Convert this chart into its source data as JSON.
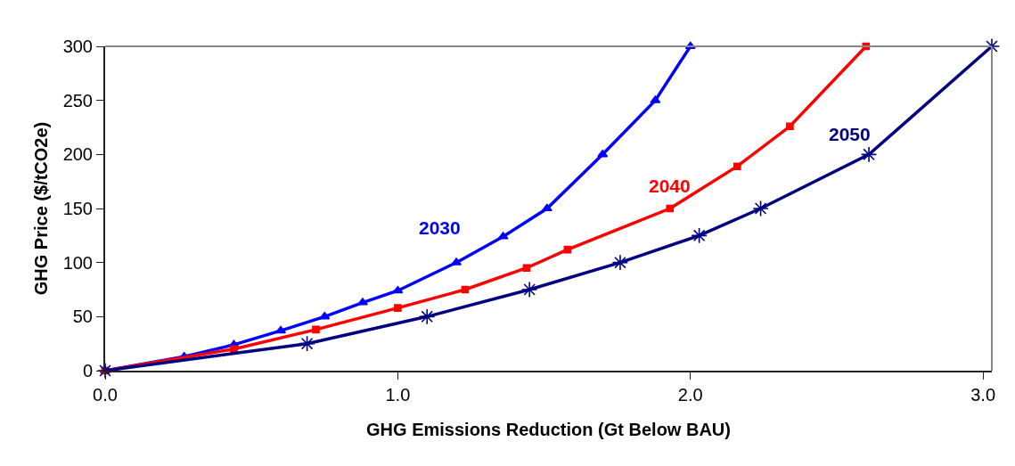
{
  "chart_data": {
    "type": "line",
    "xlabel": "GHG Emissions Reduction (Gt Below BAU)",
    "ylabel": "GHG Price ($/tCO2e)",
    "xlim": [
      0,
      3.03
    ],
    "xticks": [
      {
        "value": 0,
        "label": "0.0"
      },
      {
        "value": 1,
        "label": "1.0"
      },
      {
        "value": 2,
        "label": "2.0"
      },
      {
        "value": 3,
        "label": "3.0"
      }
    ],
    "ylim": [
      0,
      300
    ],
    "yticks": [
      0,
      50,
      100,
      150,
      200,
      250,
      300
    ],
    "legend": false,
    "line_style": "solid",
    "series": [
      {
        "name": "2030",
        "color": "#0000ff",
        "marker": "triangle",
        "x": [
          0,
          0.27,
          0.44,
          0.6,
          0.75,
          0.88,
          1.0,
          1.2,
          1.36,
          1.51,
          1.7,
          1.88,
          2.0
        ],
        "values": [
          0,
          13,
          24,
          37,
          50,
          63,
          74,
          100,
          124,
          150,
          200,
          250,
          300
        ]
      },
      {
        "name": "2040",
        "color": "#ff0000",
        "marker": "square",
        "x": [
          0,
          0.44,
          0.72,
          1.0,
          1.23,
          1.44,
          1.58,
          1.93,
          2.16,
          2.34,
          2.6
        ],
        "values": [
          0,
          20,
          38,
          58,
          75,
          95,
          112,
          150,
          189,
          226,
          300
        ]
      },
      {
        "name": "2050",
        "color": "#000080",
        "marker": "cross",
        "x": [
          0,
          0.69,
          1.1,
          1.45,
          1.76,
          2.03,
          2.24,
          2.61,
          3.03
        ],
        "values": [
          0,
          25,
          50,
          75,
          100,
          125,
          150,
          200,
          300
        ]
      }
    ]
  }
}
